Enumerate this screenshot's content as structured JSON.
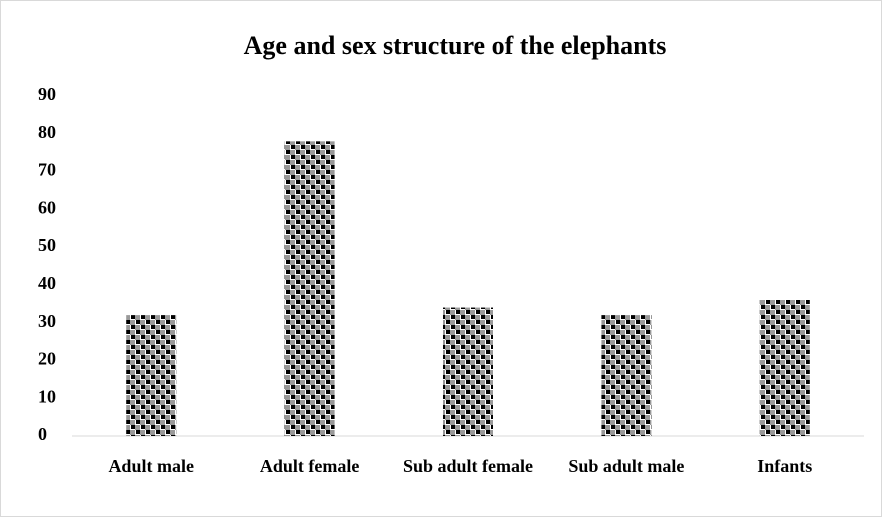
{
  "chart_data": {
    "type": "bar",
    "title": "Age and sex structure of the elephants",
    "categories": [
      "Adult male",
      "Adult female",
      "Sub adult female",
      "Sub adult male",
      "Infants"
    ],
    "values": [
      32,
      78,
      34,
      32,
      36
    ],
    "color": "#000000",
    "ylim": [
      0,
      90
    ],
    "yticks": [
      0,
      10,
      20,
      30,
      40,
      50,
      60,
      70,
      80,
      90
    ],
    "grid": false
  }
}
